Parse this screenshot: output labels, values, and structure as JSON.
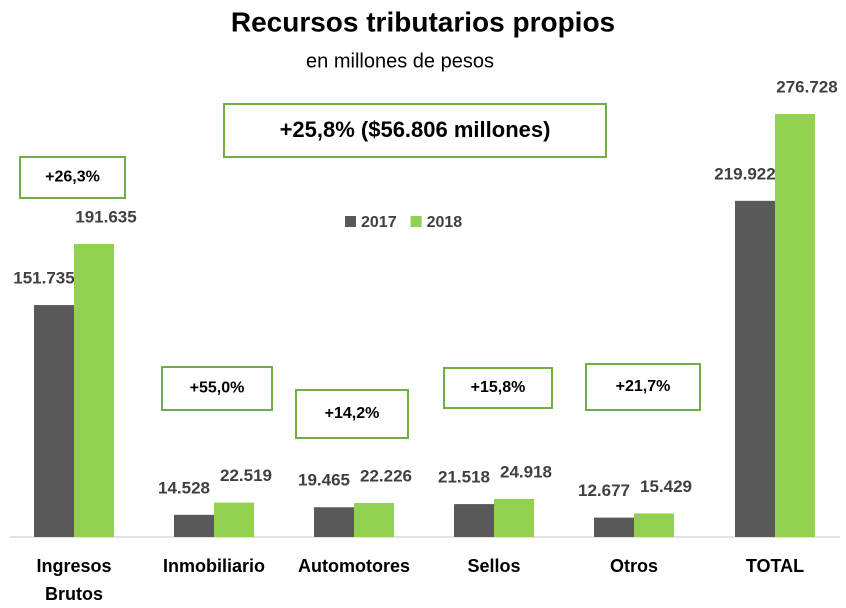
{
  "chart_data": {
    "type": "bar",
    "title": "Recursos tributarios propios",
    "subtitle": "en millones de pesos",
    "categories": [
      "Ingresos Brutos",
      "Inmobiliario",
      "Automotores",
      "Sellos",
      "Otros",
      "TOTAL"
    ],
    "series": [
      {
        "name": "2017",
        "color": "#595959",
        "values": [
          151735,
          14528,
          19465,
          21518,
          12677,
          219922
        ],
        "value_labels": [
          "151.735",
          "14.528",
          "19.465",
          "21.518",
          "12.677",
          "219.922"
        ]
      },
      {
        "name": "2018",
        "color": "#92d050",
        "values": [
          191635,
          22519,
          22226,
          24918,
          15429,
          276728
        ],
        "value_labels": [
          "191.635",
          "22.519",
          "22.226",
          "24.918",
          "15.429",
          "276.728"
        ]
      }
    ],
    "annotations": [
      "+26,3%",
      "+55,0%",
      "+14,2%",
      "+15,8%",
      "+21,7%"
    ],
    "total_annotation": "+25,8% ($56.806 millones)",
    "legend": "top"
  }
}
